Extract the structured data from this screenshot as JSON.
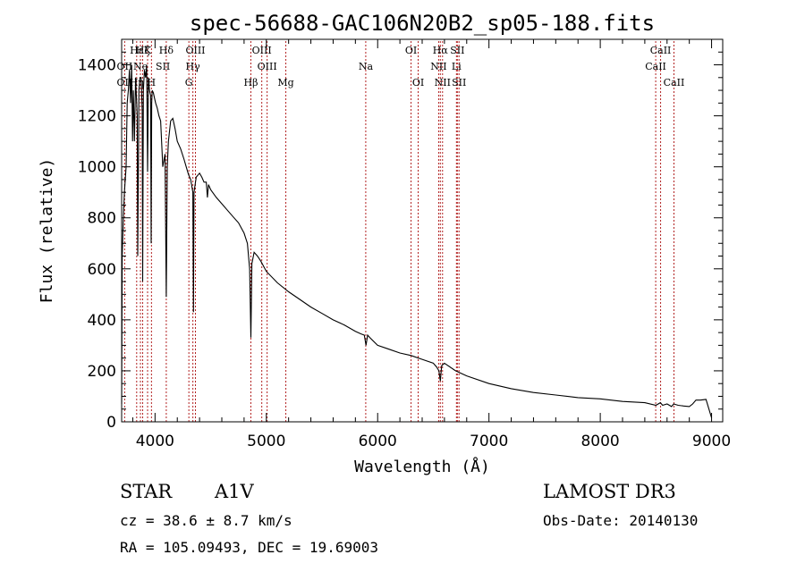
{
  "chart_data": {
    "type": "line",
    "title": "spec-56688-GAC106N20B2_sp05-188.fits",
    "xlabel": "Wavelength (Å)",
    "ylabel": "Flux (relative)",
    "xlim": [
      3700,
      9100
    ],
    "ylim": [
      0,
      1500
    ],
    "xticks": [
      4000,
      5000,
      6000,
      7000,
      8000,
      9000
    ],
    "yticks": [
      0,
      200,
      400,
      600,
      800,
      1000,
      1200,
      1400
    ],
    "series": [
      {
        "name": "spectrum",
        "x": [
          3700,
          3705,
          3715,
          3725,
          3740,
          3750,
          3760,
          3770,
          3780,
          3790,
          3798,
          3805,
          3815,
          3825,
          3835,
          3840,
          3845,
          3855,
          3865,
          3875,
          3885,
          3889,
          3895,
          3905,
          3915,
          3925,
          3933,
          3940,
          3950,
          3960,
          3965,
          3970,
          3975,
          3985,
          3995,
          4005,
          4020,
          4035,
          4050,
          4070,
          4090,
          4101,
          4110,
          4120,
          4140,
          4160,
          4180,
          4200,
          4230,
          4260,
          4280,
          4300,
          4320,
          4340,
          4345,
          4350,
          4370,
          4390,
          4400,
          4420,
          4440,
          4460,
          4471,
          4480,
          4500,
          4550,
          4600,
          4650,
          4700,
          4750,
          4800,
          4830,
          4850,
          4861,
          4870,
          4890,
          4920,
          4950,
          5000,
          5100,
          5200,
          5300,
          5400,
          5500,
          5600,
          5700,
          5800,
          5850,
          5880,
          5895,
          5910,
          5930,
          6000,
          6100,
          6200,
          6300,
          6400,
          6500,
          6530,
          6550,
          6563,
          6575,
          6600,
          6700,
          6800,
          7000,
          7200,
          7400,
          7600,
          7800,
          8000,
          8200,
          8400,
          8500,
          8540,
          8560,
          8600,
          8640,
          8660,
          8700,
          8750,
          8800,
          8830,
          8860,
          8900,
          8950,
          9000
        ],
        "y": [
          70,
          650,
          800,
          900,
          1000,
          1250,
          1300,
          1380,
          1250,
          1400,
          1100,
          1300,
          1100,
          1350,
          1250,
          1200,
          650,
          1300,
          1350,
          1350,
          1220,
          550,
          1300,
          1380,
          1350,
          1400,
          980,
          1350,
          1300,
          1280,
          700,
          1250,
          1300,
          1290,
          1270,
          1250,
          1230,
          1200,
          1180,
          1000,
          1050,
          490,
          1000,
          1100,
          1180,
          1190,
          1150,
          1100,
          1070,
          1030,
          1000,
          970,
          950,
          900,
          430,
          900,
          960,
          970,
          975,
          960,
          940,
          940,
          880,
          930,
          910,
          880,
          855,
          830,
          805,
          780,
          740,
          700,
          600,
          330,
          620,
          665,
          650,
          630,
          590,
          545,
          510,
          480,
          450,
          425,
          400,
          380,
          355,
          345,
          340,
          300,
          340,
          330,
          300,
          285,
          270,
          260,
          245,
          230,
          215,
          200,
          160,
          220,
          230,
          200,
          180,
          150,
          130,
          115,
          105,
          95,
          90,
          80,
          75,
          65,
          75,
          65,
          70,
          60,
          70,
          65,
          62,
          60,
          70,
          85,
          85,
          88,
          15
        ]
      }
    ],
    "spectral_lines": [
      {
        "label": "Hζ",
        "row": 1,
        "wl": 3889
      },
      {
        "label": "OII",
        "row": 2,
        "wl": 3727
      },
      {
        "label": "OII",
        "row": 3,
        "wl": 3727
      },
      {
        "label": "Hε",
        "row": 1,
        "wl": 3835
      },
      {
        "label": "Ne",
        "row": 2,
        "wl": 3869
      },
      {
        "label": "Hη",
        "row": 3,
        "wl": 3835
      },
      {
        "label": "K",
        "row": 1,
        "wl": 3933
      },
      {
        "label": "SII",
        "row": 2,
        "wl": 4071
      },
      {
        "label": "H",
        "row": 3,
        "wl": 3968
      },
      {
        "label": "Hδ",
        "row": 1,
        "wl": 4101
      },
      {
        "label": "OIII",
        "row": 1,
        "wl": 4363
      },
      {
        "label": "Hγ",
        "row": 2,
        "wl": 4340
      },
      {
        "label": "G",
        "row": 3,
        "wl": 4304
      },
      {
        "label": "OIII",
        "row": 1,
        "wl": 4959
      },
      {
        "label": "OIII",
        "row": 2,
        "wl": 5007
      },
      {
        "label": "Hβ",
        "row": 3,
        "wl": 4861
      },
      {
        "label": "Mg",
        "row": 3,
        "wl": 5175
      },
      {
        "label": "Na",
        "row": 2,
        "wl": 5893
      },
      {
        "label": "OI",
        "row": 1,
        "wl": 6300
      },
      {
        "label": "OI",
        "row": 3,
        "wl": 6364
      },
      {
        "label": "Hα",
        "row": 1,
        "wl": 6563
      },
      {
        "label": "SII",
        "row": 1,
        "wl": 6716
      },
      {
        "label": "NII",
        "row": 2,
        "wl": 6548
      },
      {
        "label": "Li",
        "row": 2,
        "wl": 6708
      },
      {
        "label": "NII",
        "row": 3,
        "wl": 6583
      },
      {
        "label": "SII",
        "row": 3,
        "wl": 6731
      },
      {
        "label": "CaII",
        "row": 1,
        "wl": 8542
      },
      {
        "label": "CaII",
        "row": 2,
        "wl": 8498
      },
      {
        "label": "CaII",
        "row": 3,
        "wl": 8662
      }
    ],
    "line_positions": [
      3727,
      3835,
      3869,
      3889,
      3933,
      3968,
      4101,
      4304,
      4340,
      4363,
      4861,
      4959,
      5007,
      5175,
      5893,
      6300,
      6364,
      6548,
      6563,
      6583,
      6708,
      6716,
      6731,
      8498,
      8542,
      8662
    ],
    "colors": {
      "spectrum": "#000000",
      "lines": "#b22222",
      "axes": "#000000"
    }
  },
  "info": {
    "object_class": "STAR",
    "subclass": "A1V",
    "cz": "cz = 38.6 ± 8.7 km/s",
    "coords": "RA = 105.09493, DEC =  19.69003",
    "survey": "LAMOST DR3",
    "obs_date": "Obs-Date: 20140130"
  }
}
